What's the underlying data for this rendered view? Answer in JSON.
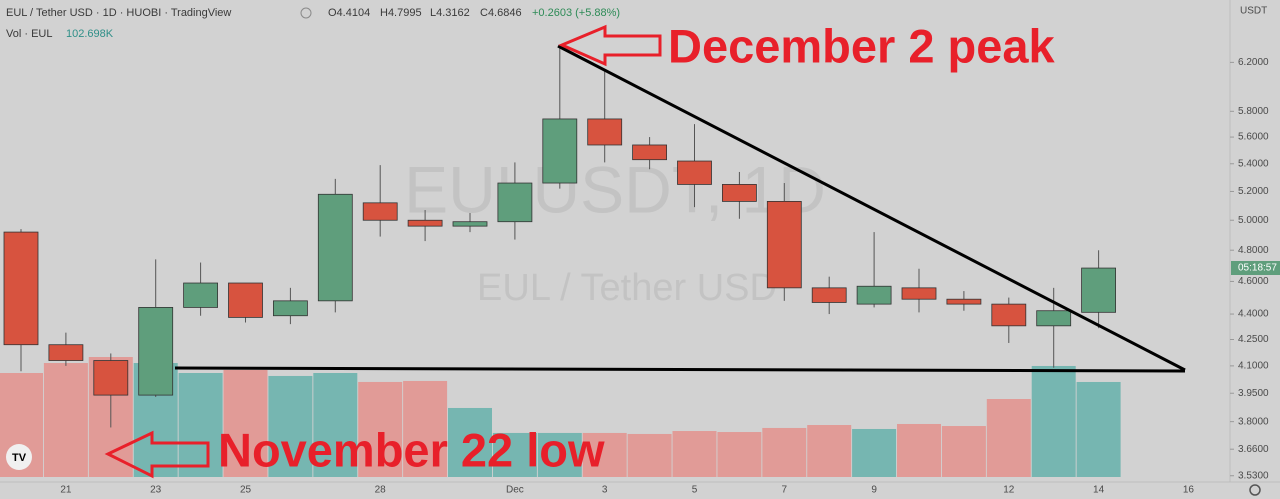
{
  "header": {
    "title": "EUL / Tether USD · 1D · HUOBI · TradingView",
    "open": "O4.4104",
    "high": "H4.7995",
    "low": "L4.3162",
    "close": "C4.6846",
    "change": "+0.2603 (+5.88%)",
    "volume_label": "Vol · EUL",
    "volume_value": "102.698K",
    "currency": "USDT",
    "countdown": "05:18:57"
  },
  "watermark": {
    "symbol": "EULUSDT, 1D",
    "name": "EUL / Tether USD"
  },
  "annotations": [
    "December 2 peak",
    "November 22 low"
  ],
  "chart_data": {
    "type": "candlestick",
    "categories": [
      null,
      "21",
      null,
      "23",
      null,
      "25",
      null,
      null,
      "28",
      null,
      null,
      "Dec",
      null,
      "3",
      null,
      "5",
      null,
      "7",
      null,
      "9",
      null,
      null,
      "12",
      null,
      "14",
      null,
      "16"
    ],
    "open": [
      4.92,
      4.22,
      4.13,
      3.94,
      4.44,
      4.59,
      4.39,
      4.48,
      5.12,
      5.0,
      4.96,
      4.99,
      5.26,
      5.74,
      5.54,
      5.42,
      5.25,
      5.13,
      4.56,
      4.46,
      4.56,
      4.49,
      4.46,
      4.33,
      4.4104,
      null,
      null
    ],
    "high": [
      4.94,
      4.29,
      4.17,
      4.74,
      4.72,
      4.59,
      4.56,
      5.29,
      5.39,
      5.07,
      5.05,
      5.41,
      6.33,
      6.13,
      5.6,
      5.7,
      5.34,
      5.26,
      4.63,
      4.92,
      4.68,
      4.54,
      4.5,
      4.56,
      4.7995,
      null,
      null
    ],
    "low": [
      4.07,
      4.1,
      3.77,
      3.93,
      4.39,
      4.35,
      4.34,
      4.41,
      4.89,
      4.86,
      4.92,
      4.87,
      5.22,
      5.41,
      5.36,
      5.09,
      5.01,
      4.48,
      4.4,
      4.44,
      4.41,
      4.42,
      4.23,
      4.09,
      4.3162,
      null,
      null
    ],
    "close": [
      4.22,
      4.13,
      3.94,
      4.44,
      4.59,
      4.38,
      4.48,
      5.18,
      5.0,
      4.96,
      4.99,
      5.26,
      5.74,
      5.54,
      5.43,
      5.25,
      5.13,
      4.56,
      4.47,
      4.57,
      4.49,
      4.46,
      4.33,
      4.42,
      4.6846,
      null,
      null
    ],
    "volume": [
      112400,
      123200,
      129700,
      123200,
      112400,
      115700,
      109200,
      112400,
      102700,
      103800,
      74600,
      47600,
      47600,
      47600,
      46500,
      49700,
      48600,
      53000,
      56200,
      51900,
      57300,
      55100,
      84300,
      120000,
      102698,
      null,
      null
    ],
    "up_color": "#5f9e7c",
    "down_color": "#d7533f",
    "volume_up_color": "#76b6b1",
    "volume_down_color": "#e19b97",
    "log_scale": true,
    "ylim": [
      3.5,
      6.75
    ],
    "yticks": [
      {
        "value": 3.53,
        "label": "3.5300"
      },
      {
        "value": 3.66,
        "label": "3.6600"
      },
      {
        "value": 3.8,
        "label": "3.8000"
      },
      {
        "value": 3.95,
        "label": "3.9500"
      },
      {
        "value": 4.1,
        "label": "4.1000"
      },
      {
        "value": 4.25,
        "label": "4.2500"
      },
      {
        "value": 4.4,
        "label": "4.4000"
      },
      {
        "value": 4.6,
        "label": "4.6000"
      },
      {
        "value": 4.8,
        "label": "4.8000"
      },
      {
        "value": 5.0,
        "label": "5.0000"
      },
      {
        "value": 5.2,
        "label": "5.2000"
      },
      {
        "value": 5.4,
        "label": "5.4000"
      },
      {
        "value": 5.6,
        "label": "5.6000"
      },
      {
        "value": 5.8,
        "label": "5.8000"
      },
      {
        "value": 6.2,
        "label": "6.2000"
      }
    ]
  }
}
